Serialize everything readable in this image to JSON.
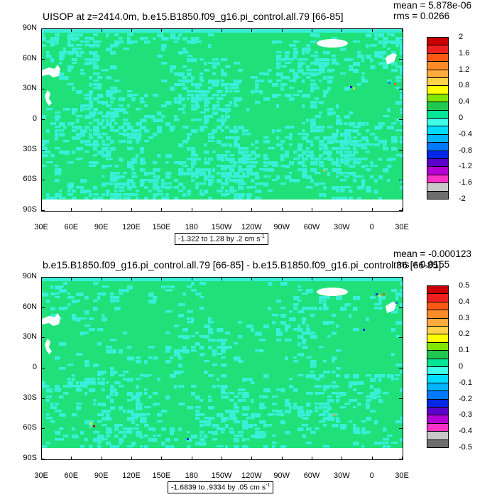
{
  "panels": [
    {
      "title": "UISOP at z=2414.0m, b.e15.B1850.f09_g16.pi_control.all.79 [66-85]",
      "mean_text": "mean = 5.878e-06",
      "rms_text": "rms = 0.0266",
      "range_text": "-1.322 to 1.28 by .2 cm s",
      "range_unit_sup": "-1",
      "colorbar_labels": [
        "2",
        "1.6",
        "1.2",
        "0.8",
        "0.4",
        "0",
        "-0.4",
        "-0.8",
        "-1.2",
        "-1.6",
        "-2"
      ]
    },
    {
      "title": "b.e15.B1850.f09_g16.pi_control.all.79 [66-85] - b.e15.B1850.f09_g16.pi_control.36 [66-85]",
      "mean_text": "mean = -0.000123",
      "rms_text": "rms = 0.0155",
      "range_text": "-1.6839 to .9334 by .05 cm s",
      "range_unit_sup": "-1",
      "colorbar_labels": [
        "0.5",
        "0.4",
        "0.3",
        "0.2",
        "0.1",
        "0",
        "-0.1",
        "-0.2",
        "-0.3",
        "-0.4",
        "-0.5"
      ]
    }
  ],
  "axes": {
    "y_ticks": [
      "90N",
      "60N",
      "30N",
      "0",
      "30S",
      "60S",
      "90S"
    ],
    "x_ticks": [
      "30E",
      "60E",
      "90E",
      "120E",
      "150E",
      "180",
      "150W",
      "120W",
      "90W",
      "60W",
      "30W",
      "0",
      "30E"
    ]
  },
  "colorbar_colors": [
    "#c80000",
    "#f02020",
    "#ff5a14",
    "#ff8c28",
    "#ffaa3c",
    "#ffd24a",
    "#ffff00",
    "#80e600",
    "#20c850",
    "#00e696",
    "#40ffe6",
    "#00dcff",
    "#00b4ff",
    "#0078ff",
    "#0028e6",
    "#5a00c8",
    "#b400d2",
    "#ff32c8",
    "#c8c8c8",
    "#6e6e6e"
  ],
  "colors": {
    "field_main": "#20e07a",
    "field_alt": "#38f0d8",
    "missing": "#ffffff"
  },
  "chart_data": [
    {
      "type": "heatmap",
      "title": "UISOP at z=2414.0m, b.e15.B1850.f09_g16.pi_control.all.79 [66-85]",
      "xlabel": "",
      "ylabel": "",
      "x_ticks": [
        "30E",
        "60E",
        "90E",
        "120E",
        "150E",
        "180",
        "150W",
        "120W",
        "90W",
        "60W",
        "30W",
        "0",
        "30E"
      ],
      "y_ticks": [
        "90N",
        "60N",
        "30N",
        "0",
        "30S",
        "60S",
        "90S"
      ],
      "contour_levels": [
        -2,
        -1.6,
        -1.2,
        -0.8,
        -0.4,
        0,
        0.4,
        0.8,
        1.2,
        1.6,
        2
      ],
      "min": -1.322,
      "max": 1.28,
      "interval": 0.2,
      "mean": 5.878e-06,
      "rms": 0.0266,
      "units": "cm s-1",
      "dominant_value_range": [
        -0.2,
        0.2
      ]
    },
    {
      "type": "heatmap",
      "title": "b.e15.B1850.f09_g16.pi_control.all.79 [66-85] - b.e15.B1850.f09_g16.pi_control.36 [66-85]",
      "xlabel": "",
      "ylabel": "",
      "x_ticks": [
        "30E",
        "60E",
        "90E",
        "120E",
        "150E",
        "180",
        "150W",
        "120W",
        "90W",
        "60W",
        "30W",
        "0",
        "30E"
      ],
      "y_ticks": [
        "90N",
        "60N",
        "30N",
        "0",
        "30S",
        "60S",
        "90S"
      ],
      "contour_levels": [
        -0.5,
        -0.4,
        -0.3,
        -0.2,
        -0.1,
        0,
        0.1,
        0.2,
        0.3,
        0.4,
        0.5
      ],
      "min": -1.6839,
      "max": 0.9334,
      "interval": 0.05,
      "mean": -0.000123,
      "rms": 0.0155,
      "units": "cm s-1",
      "dominant_value_range": [
        -0.05,
        0.05
      ]
    }
  ]
}
